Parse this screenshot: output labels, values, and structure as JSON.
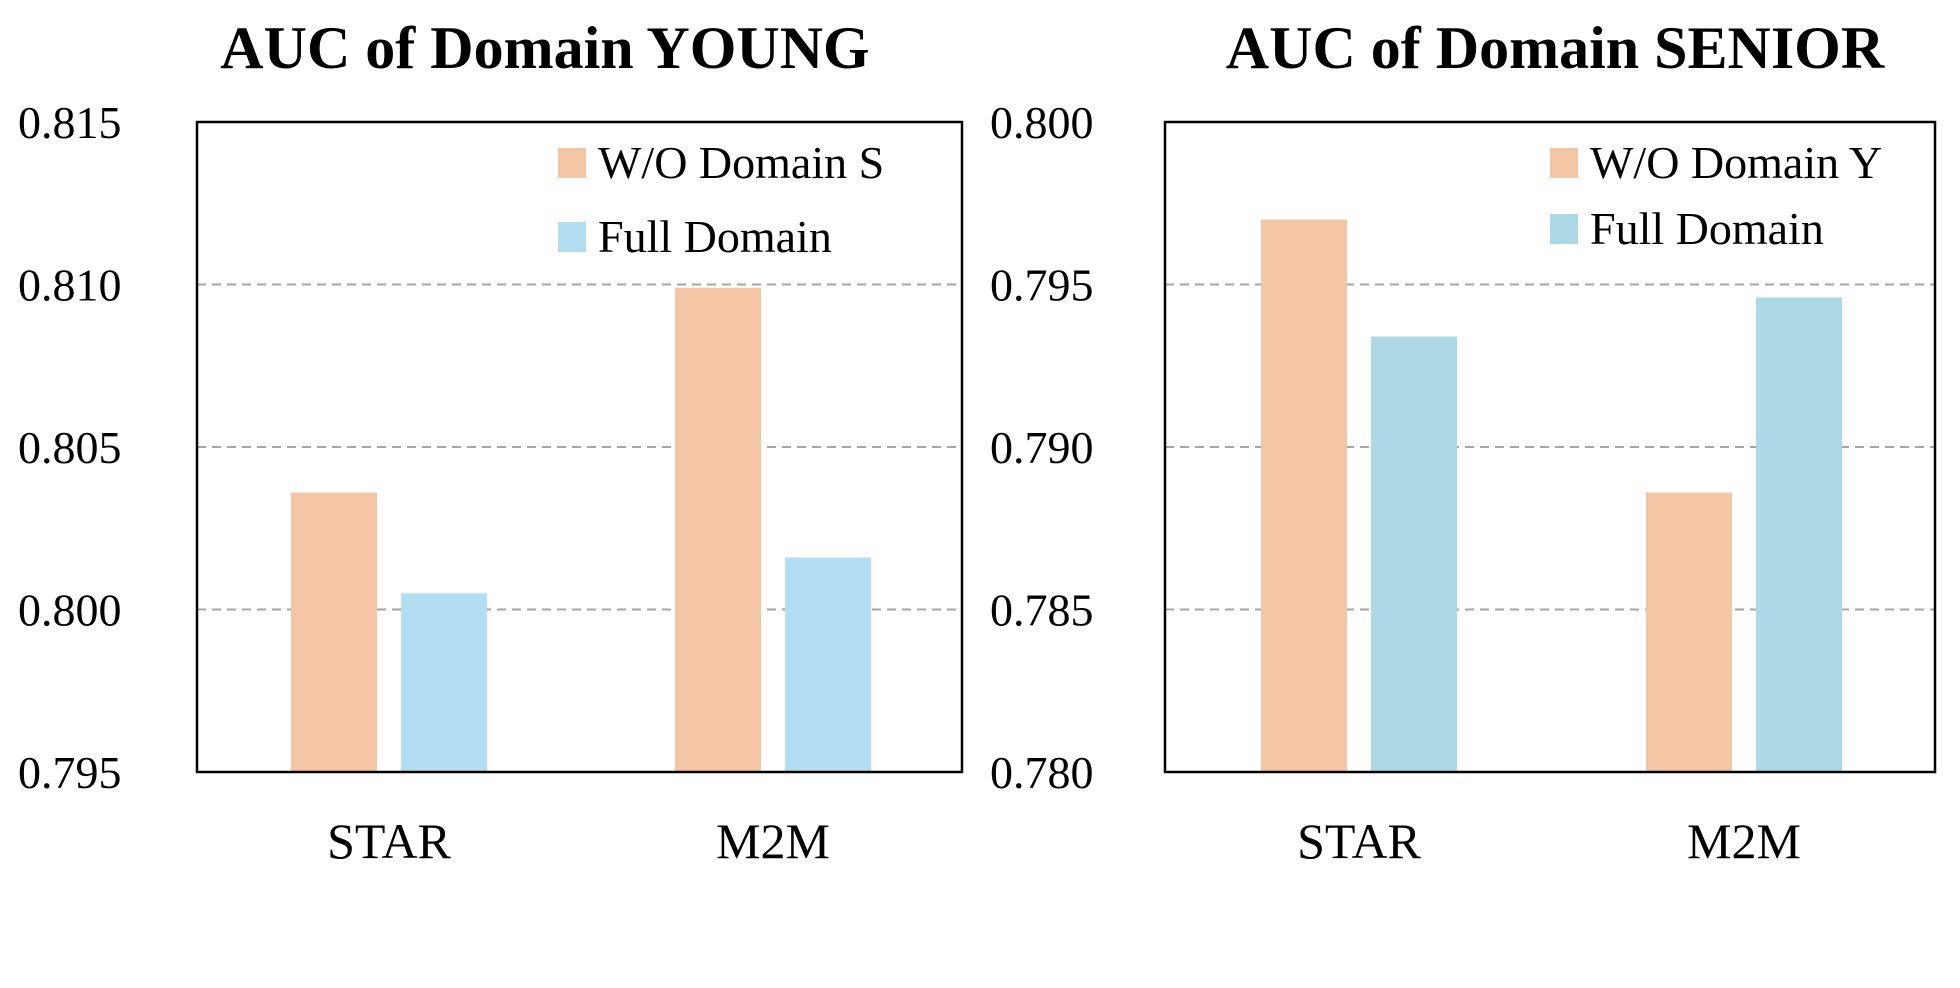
{
  "chart_data": [
    {
      "type": "bar",
      "title": "AUC of Domain YOUNG",
      "categories": [
        "STAR",
        "M2M"
      ],
      "series": [
        {
          "name": "W/O Domain S",
          "values": [
            0.8036,
            0.8099
          ]
        },
        {
          "name": "Full Domain",
          "values": [
            0.8005,
            0.8016
          ]
        }
      ],
      "ylim": [
        0.795,
        0.815
      ],
      "yticks": [
        "0.795",
        "0.800",
        "0.805",
        "0.810",
        "0.815"
      ],
      "xlabel": "",
      "ylabel": "",
      "grid": "horizontal dashed",
      "legend": "top-right",
      "colors": [
        "#f5c6a5",
        "#b3ddf0"
      ]
    },
    {
      "type": "bar",
      "title": "AUC of Domain SENIOR",
      "categories": [
        "STAR",
        "M2M"
      ],
      "series": [
        {
          "name": "W/O Domain Y",
          "values": [
            0.797,
            0.7886
          ]
        },
        {
          "name": "Full Domain",
          "values": [
            0.7934,
            0.7946
          ]
        }
      ],
      "ylim": [
        0.78,
        0.8
      ],
      "yticks": [
        "0.780",
        "0.785",
        "0.790",
        "0.795",
        "0.800"
      ],
      "xlabel": "",
      "ylabel": "",
      "grid": "horizontal dashed",
      "legend": "top-right",
      "colors": [
        "#f5c6a5",
        "#add8e6"
      ]
    }
  ]
}
